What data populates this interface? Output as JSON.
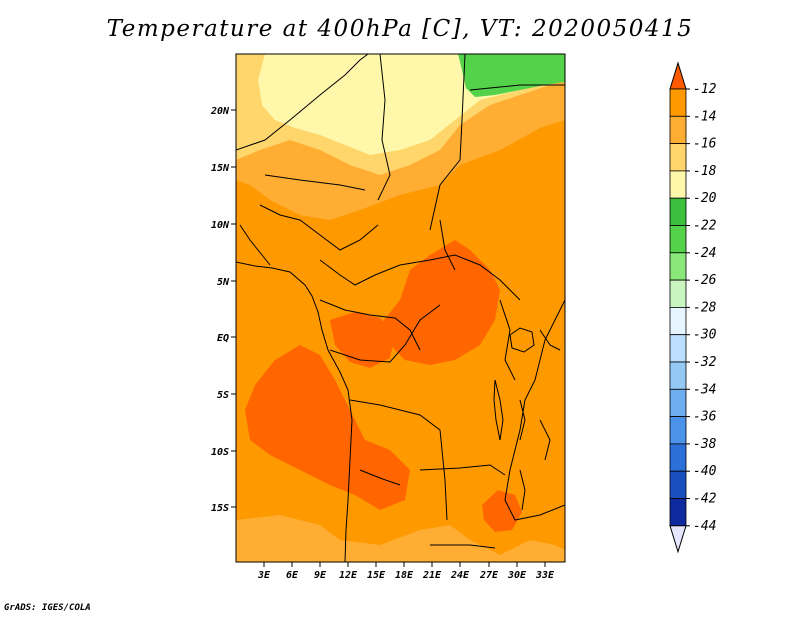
{
  "title": "Temperature at 400hPa [C], VT: 2020050415",
  "credit": "GrADS: IGES/COLA",
  "map": {
    "lat_labels": [
      "20N",
      "15N",
      "10N",
      "5N",
      "EQ",
      "5S",
      "10S",
      "15S"
    ],
    "lon_labels": [
      "3E",
      "6E",
      "9E",
      "12E",
      "15E",
      "18E",
      "21E",
      "24E",
      "27E",
      "30E",
      "33E"
    ],
    "zones": {
      "z_m14": "#ff9900",
      "z_m16": "#ffad33",
      "z_m18": "#ffd66b",
      "z_m20": "#fff7aa",
      "z_m12": "#ff6600",
      "z_m24": "#54d24a"
    }
  },
  "colorbar": {
    "levels": [
      "-12",
      "-14",
      "-16",
      "-18",
      "-20",
      "-22",
      "-24",
      "-26",
      "-28",
      "-30",
      "-32",
      "-34",
      "-36",
      "-38",
      "-40",
      "-42",
      "-44"
    ],
    "colors": [
      "#ff6600",
      "#ff9900",
      "#ffad33",
      "#ffd66b",
      "#fff7aa",
      "#3cbf3c",
      "#54d24a",
      "#8ae87a",
      "#c8f5c0",
      "#e6f5ff",
      "#bcdeff",
      "#94c8f5",
      "#6eaef0",
      "#4b92eb",
      "#2d6fd9",
      "#1a4fc0",
      "#0f2a9e",
      "#0a0a6e"
    ],
    "top_triangle_color": "#ff5a00",
    "bottom_triangle_color": "#e6e6ff"
  }
}
